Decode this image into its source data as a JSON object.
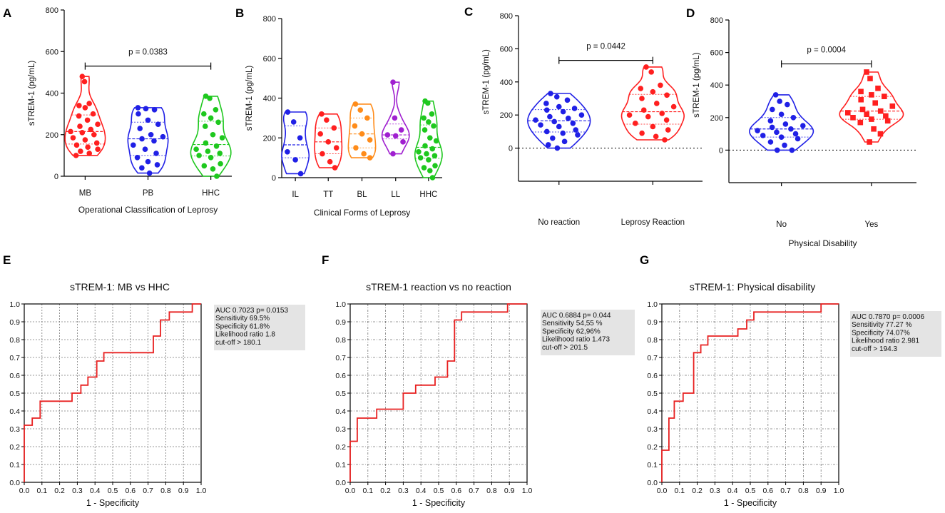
{
  "colors": {
    "red": "#ff1f1f",
    "blue": "#2020e6",
    "green": "#1ec81e",
    "orange": "#ff8c1a",
    "purple": "#a020d0",
    "roc": "#e82020",
    "grid": "#777777",
    "statbox": "#e4e4e4"
  },
  "chart_data": [
    {
      "id": "A",
      "type": "violin",
      "panel_label": "A",
      "ylabel": "sTREM-1 (pg/mL)",
      "xlabel": "Operational  Classification of Leprosy",
      "ylim": [
        0,
        800
      ],
      "yticks": [
        0,
        200,
        400,
        600,
        800
      ],
      "baseline": 0,
      "categories": [
        "MB",
        "PB",
        "HHC"
      ],
      "series": [
        {
          "name": "MB",
          "color": "red",
          "marker": "circle",
          "values": [
            480,
            455,
            350,
            340,
            330,
            300,
            290,
            270,
            250,
            240,
            225,
            215,
            210,
            200,
            185,
            175,
            160,
            150,
            140,
            130,
            120,
            110,
            100
          ]
        },
        {
          "name": "PB",
          "color": "blue",
          "marker": "circle",
          "values": [
            330,
            325,
            320,
            300,
            270,
            250,
            230,
            200,
            190,
            180,
            170,
            150,
            130,
            110,
            90,
            70,
            55,
            40,
            15
          ]
        },
        {
          "name": "HHC",
          "color": "green",
          "marker": "circle",
          "values": [
            385,
            375,
            320,
            300,
            280,
            260,
            240,
            200,
            185,
            160,
            145,
            130,
            120,
            110,
            100,
            90,
            60,
            50,
            35,
            0
          ]
        }
      ],
      "annotations": [
        {
          "text": "p = 0.0383",
          "from": 0,
          "to": 2,
          "y": 530
        }
      ]
    },
    {
      "id": "B",
      "type": "violin",
      "panel_label": "B",
      "ylabel": "sTREM-1 (pg/mL)",
      "xlabel": "Clinical Forms of  Leprosy",
      "ylim": [
        0,
        800
      ],
      "yticks": [
        0,
        200,
        400,
        600,
        800
      ],
      "baseline": 0,
      "categories": [
        "IL",
        "TT",
        "BL",
        "LL",
        "HHC"
      ],
      "series": [
        {
          "name": "IL",
          "color": "blue",
          "marker": "circle",
          "values": [
            330,
            280,
            200,
            130,
            90,
            20
          ]
        },
        {
          "name": "TT",
          "color": "red",
          "marker": "circle",
          "values": [
            320,
            290,
            250,
            220,
            180,
            150,
            120,
            80,
            50
          ]
        },
        {
          "name": "BL",
          "color": "orange",
          "marker": "circle",
          "values": [
            370,
            340,
            300,
            260,
            220,
            190,
            150,
            120,
            100
          ]
        },
        {
          "name": "LL",
          "color": "purple",
          "marker": "circle",
          "values": [
            480,
            300,
            240,
            215,
            210,
            180,
            120
          ]
        },
        {
          "name": "HHC",
          "color": "green",
          "marker": "circle",
          "values": [
            385,
            375,
            320,
            300,
            280,
            260,
            240,
            200,
            185,
            160,
            145,
            130,
            120,
            110,
            100,
            90,
            60,
            50,
            35,
            0
          ]
        }
      ]
    },
    {
      "id": "C",
      "type": "violin",
      "panel_label": "C",
      "ylabel": "sTREM-1 (pg/mL)",
      "xlabel": "",
      "ylim": [
        -200,
        800
      ],
      "yticks": [
        0,
        200,
        400,
        600,
        800
      ],
      "baseline": 0,
      "categories": [
        "No reaction",
        "Leprosy Reaction"
      ],
      "series": [
        {
          "name": "No reaction",
          "color": "blue",
          "marker": "circle",
          "values": [
            330,
            310,
            290,
            270,
            250,
            240,
            230,
            220,
            200,
            190,
            180,
            170,
            160,
            150,
            140,
            130,
            110,
            100,
            90,
            80,
            60,
            40,
            20,
            0
          ]
        },
        {
          "name": "Leprosy Reaction",
          "color": "red",
          "marker": "circle",
          "values": [
            490,
            460,
            380,
            360,
            340,
            320,
            300,
            270,
            250,
            230,
            210,
            200,
            190,
            170,
            150,
            130,
            110,
            90,
            70,
            50
          ]
        }
      ],
      "annotations": [
        {
          "text": "p = 0.0442",
          "from": 0,
          "to": 1,
          "y": 530
        }
      ]
    },
    {
      "id": "D",
      "type": "violin",
      "panel_label": "D",
      "ylabel": "sTREM-1 (pg/mL)",
      "xlabel": "Physical Disability",
      "ylim": [
        -200,
        800
      ],
      "yticks": [
        0,
        200,
        400,
        600,
        800
      ],
      "baseline": 0,
      "categories": [
        "No",
        "Yes"
      ],
      "series": [
        {
          "name": "No",
          "color": "blue",
          "marker": "circle",
          "values": [
            340,
            300,
            280,
            250,
            220,
            200,
            180,
            160,
            150,
            140,
            130,
            120,
            110,
            100,
            90,
            80,
            70,
            50,
            30,
            0,
            0
          ]
        },
        {
          "name": "Yes",
          "color": "red",
          "marker": "square",
          "values": [
            480,
            440,
            380,
            360,
            340,
            330,
            310,
            290,
            270,
            250,
            240,
            230,
            220,
            210,
            200,
            190,
            180,
            170,
            130,
            100,
            50
          ]
        }
      ],
      "annotations": [
        {
          "text": "p = 0.0004",
          "from": 0,
          "to": 1,
          "y": 530
        }
      ]
    },
    {
      "id": "E",
      "type": "line",
      "panel_label": "E",
      "title": "sTREM-1: MB vs HHC",
      "xlabel": "1 - Specificity",
      "ylabel": "",
      "xlim": [
        0,
        1
      ],
      "ylim": [
        0,
        1
      ],
      "grid": true,
      "x": [
        0,
        0,
        0.045,
        0.045,
        0.09,
        0.09,
        0.27,
        0.27,
        0.32,
        0.32,
        0.36,
        0.36,
        0.41,
        0.41,
        0.45,
        0.45,
        0.73,
        0.73,
        0.77,
        0.77,
        0.82,
        0.82,
        0.95,
        0.95,
        1.0
      ],
      "y": [
        0,
        0.32,
        0.32,
        0.36,
        0.36,
        0.455,
        0.455,
        0.5,
        0.5,
        0.545,
        0.545,
        0.59,
        0.59,
        0.68,
        0.68,
        0.727,
        0.727,
        0.82,
        0.82,
        0.91,
        0.91,
        0.955,
        0.955,
        1.0,
        1.0
      ],
      "stats": [
        "AUC  0.7023 p= 0.0153",
        "Sensitivity 69.5%",
        "Specificity 61.8%",
        "Likelihood ratio 1.8",
        "cut-off  > 180.1"
      ]
    },
    {
      "id": "F",
      "type": "line",
      "panel_label": "F",
      "title": "sTREM-1 reaction vs no reaction",
      "xlabel": "1 - Specificity",
      "ylabel": "",
      "xlim": [
        0,
        1
      ],
      "ylim": [
        0,
        1
      ],
      "grid": true,
      "x": [
        0,
        0,
        0.04,
        0.04,
        0.15,
        0.15,
        0.3,
        0.3,
        0.37,
        0.37,
        0.48,
        0.48,
        0.55,
        0.55,
        0.59,
        0.59,
        0.63,
        0.63,
        0.89,
        0.89,
        1.0
      ],
      "y": [
        0,
        0.23,
        0.23,
        0.36,
        0.36,
        0.41,
        0.41,
        0.5,
        0.5,
        0.545,
        0.545,
        0.59,
        0.59,
        0.68,
        0.68,
        0.91,
        0.91,
        0.955,
        0.955,
        1.0,
        1.0
      ],
      "stats": [
        "AUC  0.6884 p= 0.044",
        "Sensitivity  54,55 %",
        "Specificity  62,96%",
        "Likelihood ratio  1.473",
        "cut-off  > 201.5"
      ]
    },
    {
      "id": "G",
      "type": "line",
      "panel_label": "G",
      "title": "sTREM-1: Physical disability",
      "xlabel": "1 - Specificity",
      "ylabel": "",
      "xlim": [
        0,
        1
      ],
      "ylim": [
        0,
        1
      ],
      "grid": true,
      "x": [
        0,
        0,
        0.04,
        0.04,
        0.07,
        0.07,
        0.12,
        0.12,
        0.18,
        0.18,
        0.22,
        0.22,
        0.26,
        0.26,
        0.43,
        0.43,
        0.48,
        0.48,
        0.52,
        0.52,
        0.57,
        0.57,
        0.9,
        0.9,
        1.0
      ],
      "y": [
        0,
        0.18,
        0.18,
        0.36,
        0.36,
        0.455,
        0.455,
        0.5,
        0.5,
        0.727,
        0.727,
        0.77,
        0.77,
        0.82,
        0.82,
        0.86,
        0.86,
        0.91,
        0.91,
        0.955,
        0.955,
        0.955,
        0.955,
        1.0,
        1.0
      ],
      "stats": [
        "AUC  0.7870 p= 0.0006",
        "Sensitivity 77.27 %",
        "Specificity 74.07%",
        "Likelihood ratio  2.981",
        "cut-off  > 194.3"
      ]
    }
  ]
}
